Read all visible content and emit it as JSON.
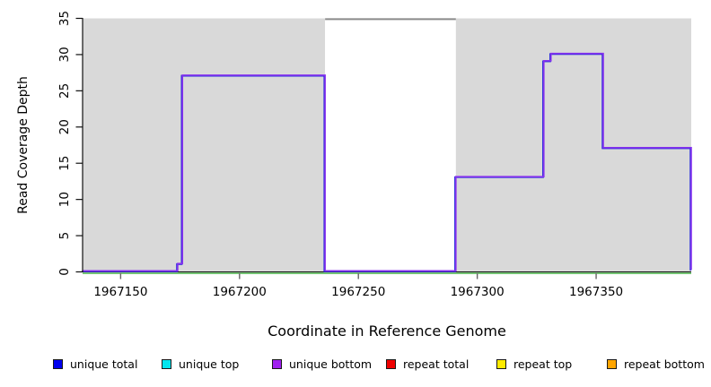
{
  "chart_data": {
    "type": "line",
    "style": "step",
    "title": "",
    "xlabel": "Coordinate in Reference Genome",
    "ylabel": "Read Coverage Depth",
    "xlim": [
      1967134,
      1967390
    ],
    "ylim": [
      0,
      35
    ],
    "x_ticks": [
      1967150,
      1967200,
      1967250,
      1967300,
      1967350
    ],
    "y_ticks": [
      0,
      5,
      10,
      15,
      20,
      25,
      30,
      35
    ],
    "grid": "off",
    "legend_position": "bottom",
    "background_bands": [
      {
        "name": "unique-region-left",
        "x0": 1967134,
        "x1": 1967236,
        "color": "#d9d9d9"
      },
      {
        "name": "repeat-region",
        "x0": 1967236,
        "x1": 1967291,
        "color": "#ffffff"
      },
      {
        "name": "unique-region-right",
        "x0": 1967291,
        "x1": 1967390,
        "color": "#d9d9d9"
      }
    ],
    "coverage_steps": [
      {
        "from": 1967134,
        "to": 1967174,
        "depth": 0
      },
      {
        "from": 1967174,
        "to": 1967176,
        "depth": 1
      },
      {
        "from": 1967176,
        "to": 1967236,
        "depth": 27
      },
      {
        "from": 1967236,
        "to": 1967291,
        "depth": 0
      },
      {
        "from": 1967291,
        "to": 1967328,
        "depth": 13
      },
      {
        "from": 1967328,
        "to": 1967331,
        "depth": 29
      },
      {
        "from": 1967331,
        "to": 1967353,
        "depth": 30
      },
      {
        "from": 1967353,
        "to": 1967390,
        "depth": 17
      }
    ],
    "line_color_main": "#8833EE",
    "line_color_under": "#2222DD",
    "offscale_repeat_line": {
      "from": 1967236,
      "to": 1967291,
      "at_depth": 35,
      "color": "#8A8A8A"
    },
    "zero_baseline": {
      "depth": 0,
      "color": "#3BAE3B"
    },
    "axis_color": "#111111",
    "x_tick_color": "#666666",
    "legend": [
      {
        "label": "unique total",
        "color": "#0000EE"
      },
      {
        "label": "unique top",
        "color": "#00E5EE"
      },
      {
        "label": "unique bottom",
        "color": "#A020F0"
      },
      {
        "label": "repeat total",
        "color": "#EE0000"
      },
      {
        "label": "repeat top",
        "color": "#FFEB00"
      },
      {
        "label": "repeat bottom",
        "color": "#FFA500"
      }
    ]
  }
}
